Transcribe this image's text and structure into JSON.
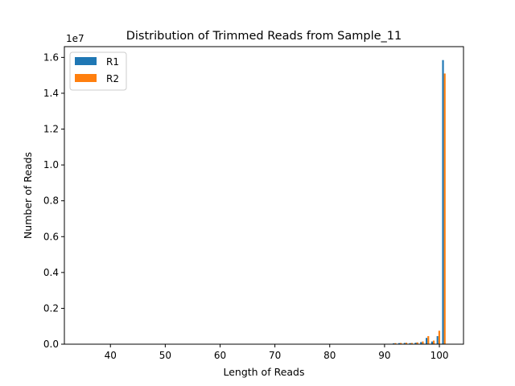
{
  "chart_data": {
    "type": "bar",
    "title": "Distribution of Trimmed Reads from Sample_11",
    "xlabel": "Length of Reads",
    "ylabel": "Number of Reads",
    "y_scale_label": "1e7",
    "xlim": [
      31.6,
      104.4
    ],
    "ylim": [
      0,
      1.66
    ],
    "x_ticks": [
      40,
      50,
      60,
      70,
      80,
      90,
      100
    ],
    "y_ticks": [
      0.0,
      0.2,
      0.4,
      0.6,
      0.8,
      1.0,
      1.2,
      1.4,
      1.6
    ],
    "grid": false,
    "legend_position": "top-left",
    "series": [
      {
        "name": "R1",
        "color": "#1f77b4",
        "x": [
          92,
          93,
          94,
          95,
          96,
          97,
          98,
          99,
          100,
          101
        ],
        "values": [
          0.005,
          0.006,
          0.007,
          0.006,
          0.008,
          0.012,
          0.035,
          0.015,
          0.045,
          1.585
        ]
      },
      {
        "name": "R2",
        "color": "#ff7f0e",
        "x": [
          92,
          93,
          94,
          95,
          96,
          97,
          98,
          99,
          100,
          101
        ],
        "values": [
          0.006,
          0.007,
          0.008,
          0.007,
          0.01,
          0.015,
          0.045,
          0.02,
          0.075,
          1.51
        ]
      }
    ]
  }
}
